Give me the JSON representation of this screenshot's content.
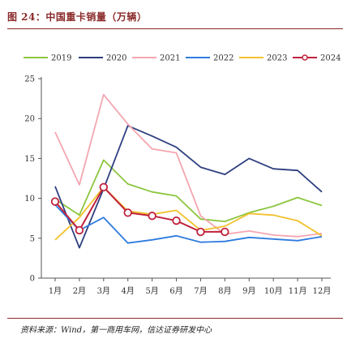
{
  "title": "图 24：中国重卡销量（万辆）",
  "source": "资料来源：Wind，第一商用车网，信达证券研发中心",
  "colors": {
    "header": "#8a2a2a"
  },
  "chart_data": {
    "type": "line",
    "title": "",
    "xlabel": "",
    "ylabel": "",
    "ylim": [
      0,
      25
    ],
    "yticks": [
      0,
      5,
      10,
      15,
      20,
      25
    ],
    "categories": [
      "1月",
      "2月",
      "3月",
      "4月",
      "5月",
      "6月",
      "7月",
      "8月",
      "9月",
      "10月",
      "11月",
      "12月"
    ],
    "legend_position": "top",
    "grid": false,
    "series": [
      {
        "name": "2019",
        "color": "#8cc63f",
        "marker": "none",
        "values": [
          9.9,
          7.9,
          14.8,
          11.8,
          10.8,
          10.3,
          7.4,
          7.1,
          8.2,
          9.0,
          10.1,
          9.1
        ]
      },
      {
        "name": "2020",
        "color": "#2e3f7f",
        "marker": "none",
        "values": [
          11.5,
          3.8,
          11.2,
          19.1,
          17.8,
          16.4,
          13.9,
          13.0,
          15.0,
          13.7,
          13.5,
          10.8
        ]
      },
      {
        "name": "2021",
        "color": "#f4a6b0",
        "marker": "none",
        "values": [
          18.3,
          11.7,
          23.0,
          19.3,
          16.2,
          15.7,
          7.8,
          5.5,
          5.9,
          5.4,
          5.2,
          5.6
        ]
      },
      {
        "name": "2022",
        "color": "#2f7ce0",
        "marker": "none",
        "values": [
          9.2,
          6.0,
          7.6,
          4.4,
          4.8,
          5.3,
          4.5,
          4.6,
          5.1,
          4.9,
          4.7,
          5.2
        ]
      },
      {
        "name": "2023",
        "color": "#f2c12e",
        "marker": "none",
        "values": [
          4.8,
          7.6,
          11.4,
          8.4,
          8.0,
          8.5,
          6.0,
          6.5,
          8.1,
          7.9,
          7.2,
          5.3
        ]
      },
      {
        "name": "2024",
        "color": "#c0223c",
        "marker": "circle",
        "values": [
          9.6,
          6.0,
          11.4,
          8.2,
          7.8,
          7.2,
          5.8,
          5.8,
          null,
          null,
          null,
          null
        ]
      }
    ]
  }
}
